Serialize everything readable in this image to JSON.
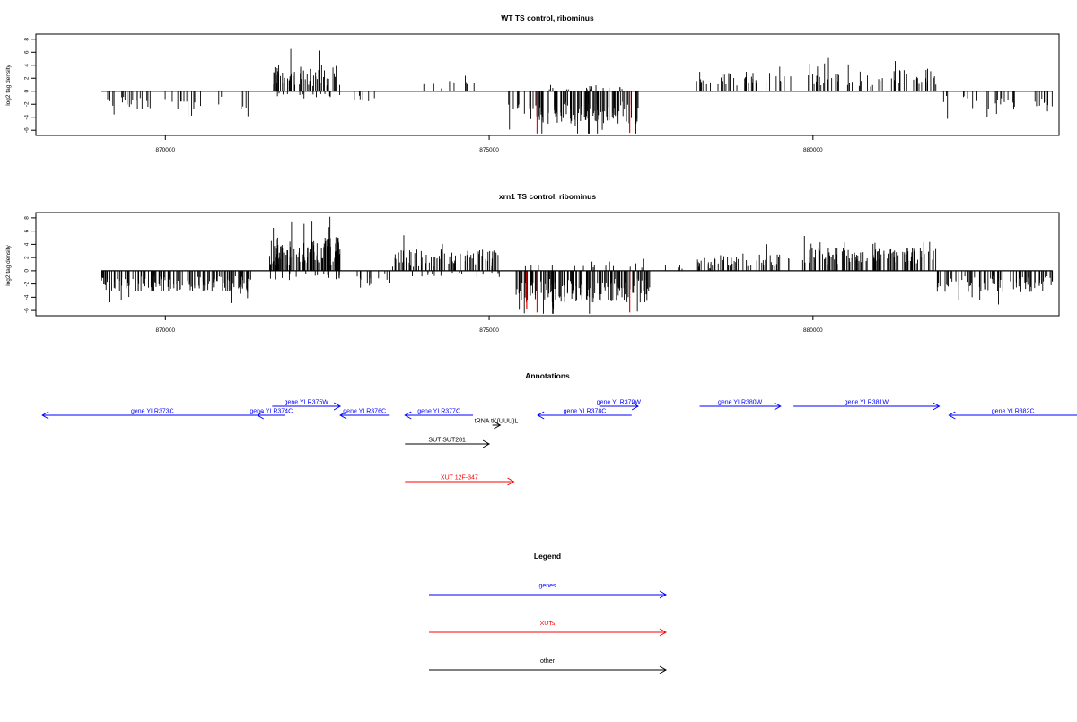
{
  "chart_data": [
    {
      "id": "wt",
      "type": "bar",
      "title": "WT TS control, ribominus",
      "ylabel": "log2 tag density",
      "xlim": [
        868000,
        883800
      ],
      "ylim": [
        -6.8,
        8.8
      ],
      "xticks": [
        870000,
        875000,
        880000
      ],
      "xtick_labels": [
        "870000",
        "875000",
        "880000"
      ],
      "yticks": [
        -6,
        -4,
        -2,
        0,
        2,
        4,
        6,
        8
      ],
      "ytick_labels": [
        "-6",
        "-4",
        "-2",
        "0",
        "2",
        "4",
        "6",
        "8"
      ],
      "baseline": {
        "from": 869000,
        "to": 883700
      },
      "density_segments": [
        {
          "from": 869050,
          "to": 870900,
          "n": 34,
          "sign": -1,
          "mean": 1.8,
          "amp": 1.0
        },
        {
          "from": 871150,
          "to": 871350,
          "n": 5,
          "sign": -1,
          "mean": 2.3,
          "amp": 1.0
        },
        {
          "from": 871650,
          "to": 872700,
          "n": 60,
          "sign": 1,
          "mean": 2.3,
          "amp": 1.8
        },
        {
          "from": 871700,
          "to": 872700,
          "n": 16,
          "sign": -1,
          "mean": 0.6,
          "amp": 0.4
        },
        {
          "from": 872900,
          "to": 873250,
          "n": 6,
          "sign": -1,
          "mean": 1.0,
          "amp": 0.7
        },
        {
          "from": 873800,
          "to": 874900,
          "n": 10,
          "sign": 1,
          "mean": 1.0,
          "amp": 0.6
        },
        {
          "from": 875300,
          "to": 875700,
          "n": 12,
          "sign": -1,
          "mean": 3.0,
          "amp": 1.5
        },
        {
          "from": 875700,
          "to": 877300,
          "n": 110,
          "sign": -1,
          "mean": 3.2,
          "amp": 1.8
        },
        {
          "from": 875800,
          "to": 877200,
          "n": 16,
          "sign": 1,
          "mean": 0.6,
          "amp": 0.4
        },
        {
          "from": 878200,
          "to": 879700,
          "n": 40,
          "sign": 1,
          "mean": 1.9,
          "amp": 1.2
        },
        {
          "from": 879900,
          "to": 881900,
          "n": 60,
          "sign": 1,
          "mean": 2.0,
          "amp": 1.3
        },
        {
          "from": 882000,
          "to": 883700,
          "n": 30,
          "sign": -1,
          "mean": 1.7,
          "amp": 1.0
        }
      ],
      "highlights": [
        {
          "x": 875740,
          "y": -6.5,
          "color": "#ff0000"
        },
        {
          "x": 877170,
          "y": -6.4,
          "color": "#ff0000"
        }
      ],
      "seed": 11
    },
    {
      "id": "xrn1",
      "type": "bar",
      "title": "xrn1 TS control, ribominus",
      "ylabel": "log2 tag density",
      "xlim": [
        868000,
        883800
      ],
      "ylim": [
        -6.8,
        8.8
      ],
      "xticks": [
        870000,
        875000,
        880000
      ],
      "xtick_labels": [
        "870000",
        "875000",
        "880000"
      ],
      "yticks": [
        -6,
        -4,
        -2,
        0,
        2,
        4,
        6,
        8
      ],
      "ytick_labels": [
        "-6",
        "-4",
        "-2",
        "0",
        "2",
        "4",
        "6",
        "8"
      ],
      "baseline": {
        "from": 869000,
        "to": 883700
      },
      "density_segments": [
        {
          "from": 869000,
          "to": 871350,
          "n": 140,
          "sign": -1,
          "mean": 2.0,
          "amp": 1.2
        },
        {
          "from": 871600,
          "to": 872750,
          "n": 120,
          "sign": 1,
          "mean": 3.0,
          "amp": 2.2
        },
        {
          "from": 871600,
          "to": 872750,
          "n": 16,
          "sign": -1,
          "mean": 0.8,
          "amp": 0.6
        },
        {
          "from": 872800,
          "to": 873500,
          "n": 12,
          "sign": -1,
          "mean": 1.3,
          "amp": 1.0
        },
        {
          "from": 873500,
          "to": 875200,
          "n": 90,
          "sign": 1,
          "mean": 2.0,
          "amp": 1.4
        },
        {
          "from": 873700,
          "to": 875200,
          "n": 16,
          "sign": -1,
          "mean": 0.6,
          "amp": 0.4
        },
        {
          "from": 875400,
          "to": 877500,
          "n": 160,
          "sign": -1,
          "mean": 3.0,
          "amp": 1.8
        },
        {
          "from": 875500,
          "to": 877400,
          "n": 16,
          "sign": 1,
          "mean": 0.8,
          "amp": 0.6
        },
        {
          "from": 877700,
          "to": 878500,
          "n": 8,
          "sign": 1,
          "mean": 0.8,
          "amp": 0.5
        },
        {
          "from": 878200,
          "to": 879700,
          "n": 50,
          "sign": 1,
          "mean": 1.5,
          "amp": 1.1
        },
        {
          "from": 879800,
          "to": 881900,
          "n": 120,
          "sign": 1,
          "mean": 2.2,
          "amp": 1.3
        },
        {
          "from": 881900,
          "to": 883700,
          "n": 80,
          "sign": -1,
          "mean": 2.0,
          "amp": 1.3
        }
      ],
      "highlights": [
        {
          "x": 875580,
          "y": -5.8,
          "color": "#ff0000"
        },
        {
          "x": 875740,
          "y": -6.3,
          "color": "#ff0000"
        },
        {
          "x": 877170,
          "y": -6.3,
          "color": "#ff0000"
        }
      ],
      "seed": 29
    }
  ],
  "annotations": {
    "title": "Annotations",
    "features": [
      {
        "label": "gene YLR373C",
        "from": 868100,
        "to": 871500,
        "dir": "left",
        "row": 2,
        "color": "#0000ff"
      },
      {
        "label": "gene YLR374C",
        "from": 871420,
        "to": 871850,
        "dir": "left",
        "row": 2,
        "color": "#0000ff"
      },
      {
        "label": "gene YLR375W",
        "from": 871650,
        "to": 872700,
        "dir": "right",
        "row": 1,
        "color": "#0000ff"
      },
      {
        "label": "gene YLR376C",
        "from": 872700,
        "to": 873450,
        "dir": "left",
        "row": 2,
        "color": "#0000ff"
      },
      {
        "label": "gene YLR377C",
        "from": 873700,
        "to": 874750,
        "dir": "left",
        "row": 2,
        "color": "#0000ff"
      },
      {
        "label": "tRNA tK(UUU)L",
        "from": 875050,
        "to": 875170,
        "dir": "right",
        "row": 3,
        "color": "#000000"
      },
      {
        "label": "gene YLR378C",
        "from": 875750,
        "to": 877200,
        "dir": "left",
        "row": 2,
        "color": "#0000ff"
      },
      {
        "label": "gene YLR379W",
        "from": 876700,
        "to": 877300,
        "dir": "right",
        "row": 1,
        "color": "#0000ff"
      },
      {
        "label": "gene YLR380W",
        "from": 878250,
        "to": 879500,
        "dir": "right",
        "row": 1,
        "color": "#0000ff"
      },
      {
        "label": "gene YLR381W",
        "from": 879700,
        "to": 881950,
        "dir": "right",
        "row": 1,
        "color": "#0000ff"
      },
      {
        "label": "gene YLR382C",
        "from": 882100,
        "to": 884300,
        "dir": "left",
        "row": 2,
        "color": "#0000ff"
      },
      {
        "label": "SUT SUT281",
        "from": 873700,
        "to": 875000,
        "dir": "right",
        "row": 4,
        "color": "#000000"
      },
      {
        "label": "XUT 12F-347",
        "from": 873700,
        "to": 875380,
        "dir": "right",
        "row": 5,
        "color": "#ff0000"
      }
    ]
  },
  "legend": {
    "title": "Legend",
    "items": [
      {
        "label": "genes",
        "color": "#0000ff"
      },
      {
        "label": "XUTs",
        "color": "#ff0000"
      },
      {
        "label": "other",
        "color": "#000000"
      }
    ]
  }
}
